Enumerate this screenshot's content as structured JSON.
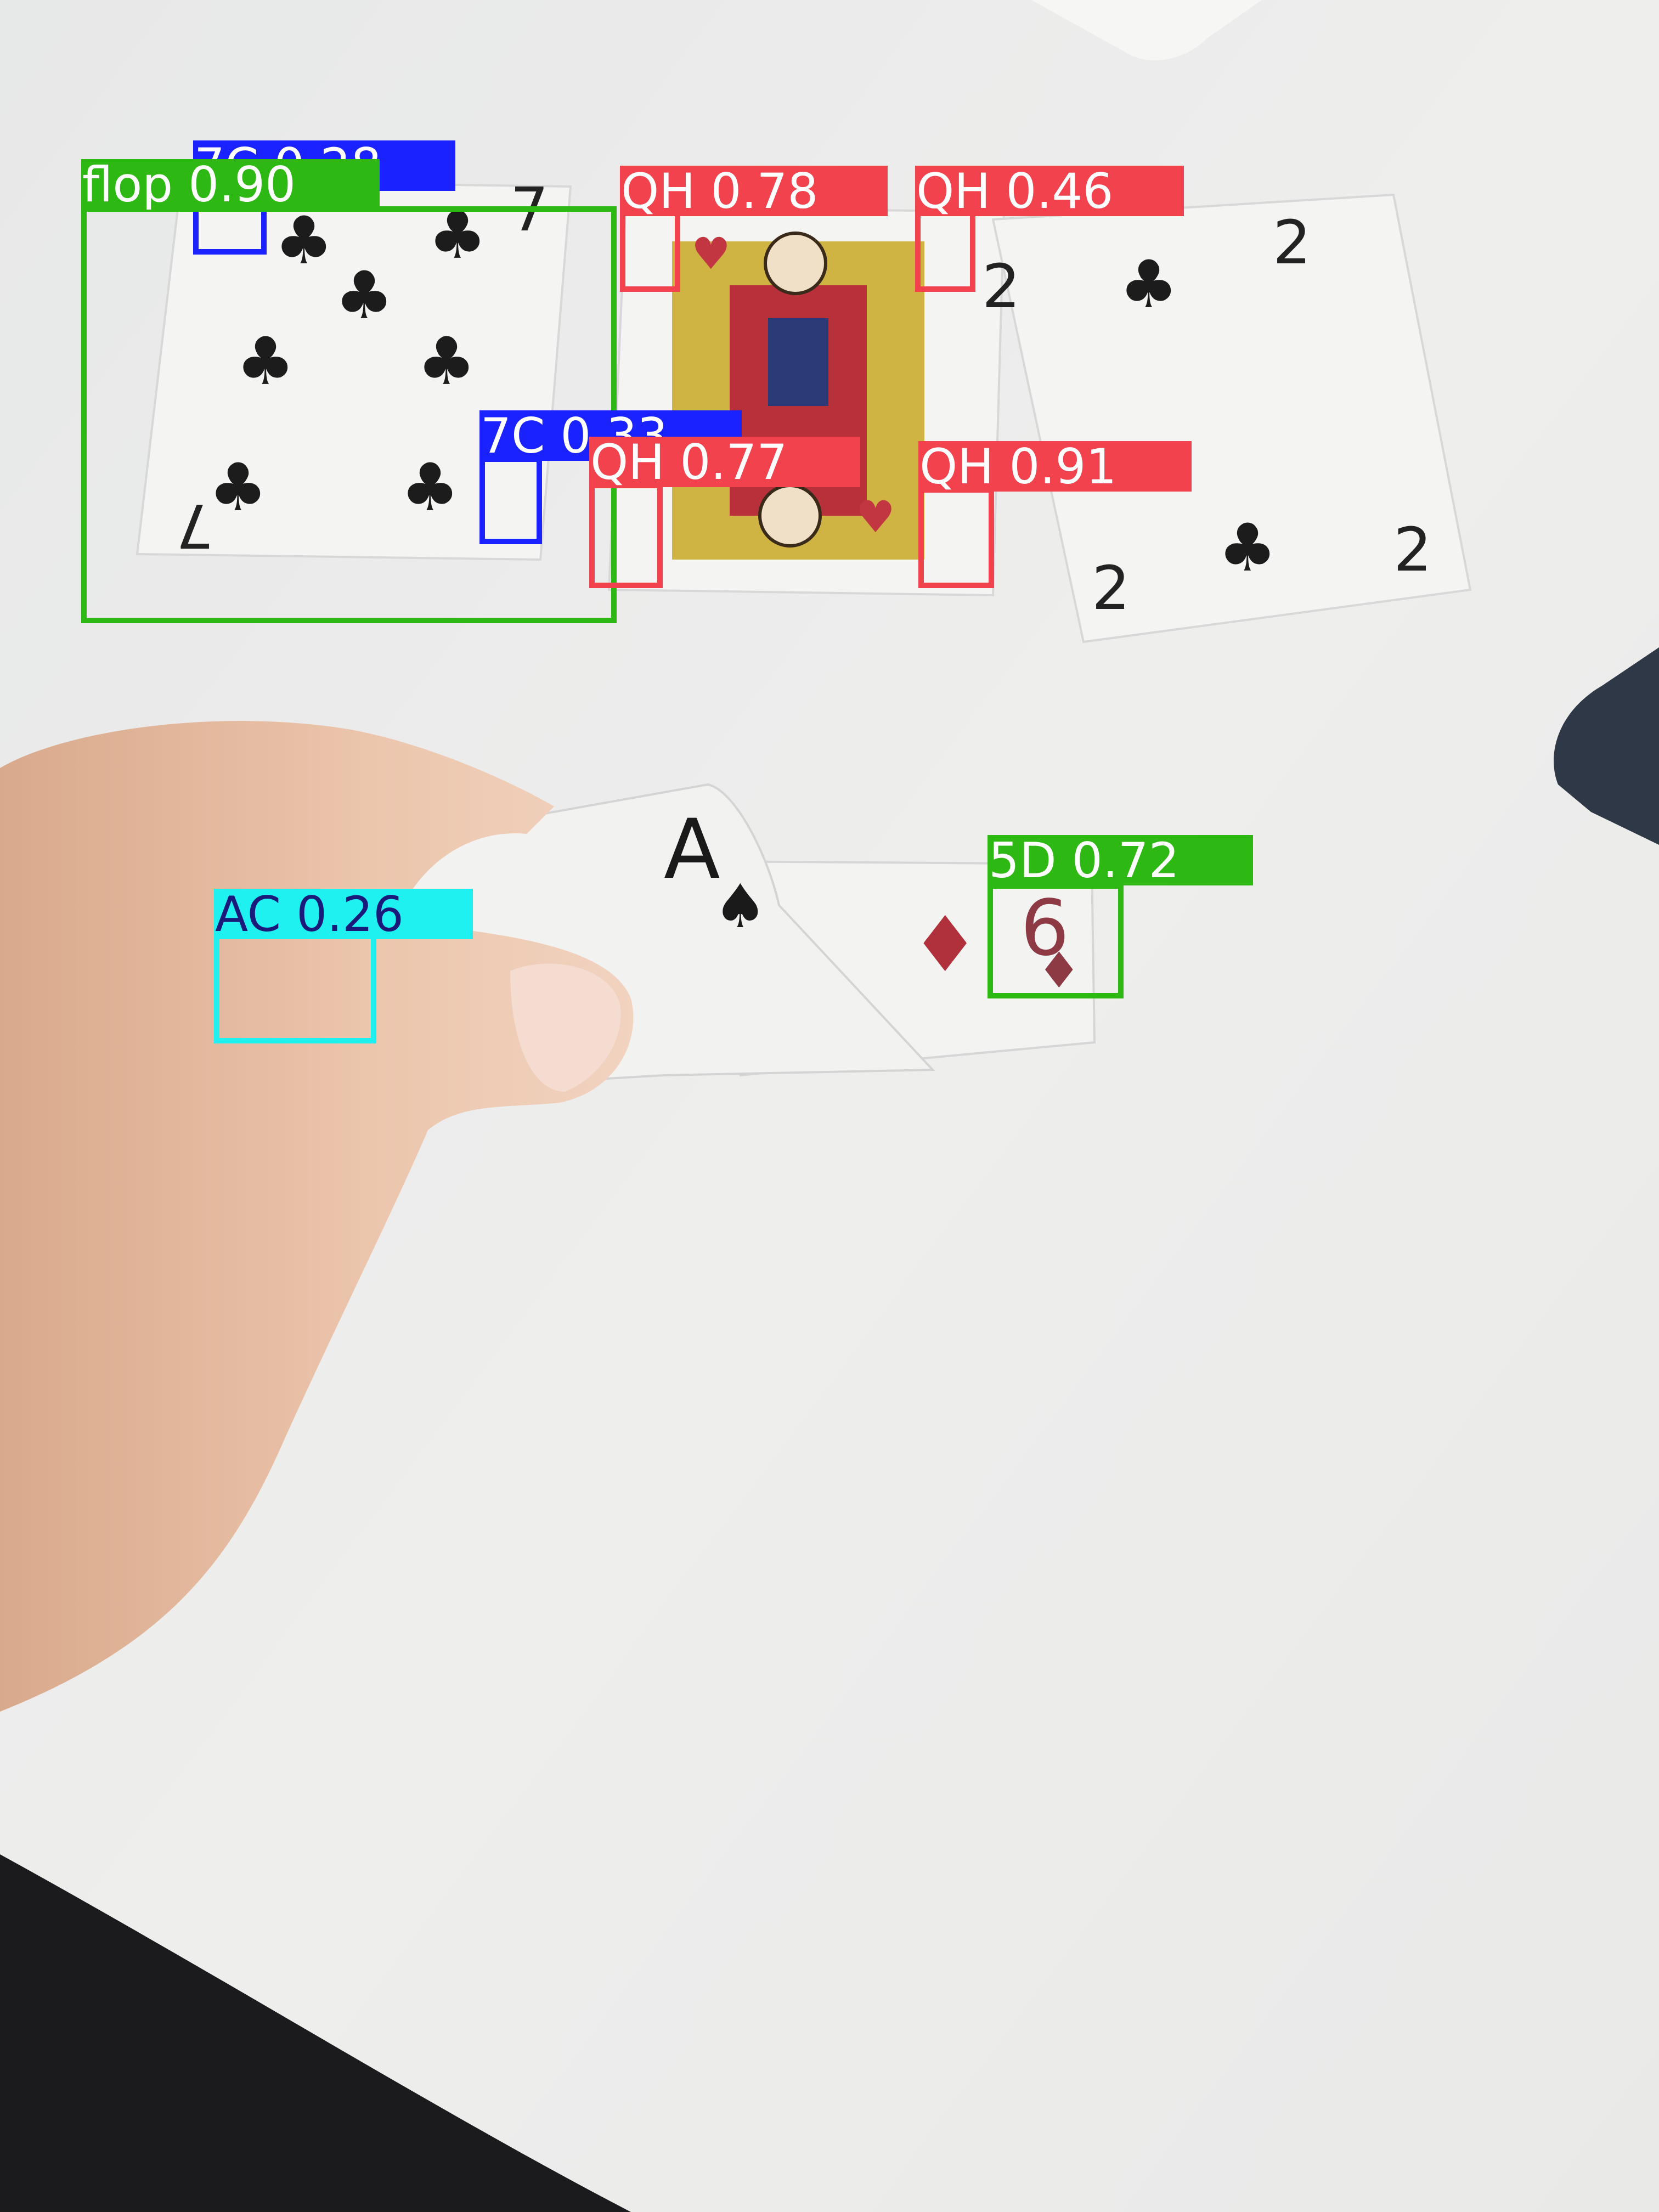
{
  "detections": [
    {
      "label": "7C 0.28",
      "color": "#1a22ff",
      "text_color": "#ffffff"
    },
    {
      "label": "flop 0.90",
      "color": "#2eb814",
      "text_color": "#ffffff"
    },
    {
      "label": "QH 0.78",
      "color": "#f2424e",
      "text_color": "#ffffff"
    },
    {
      "label": "QH 0.46",
      "color": "#f2424e",
      "text_color": "#ffffff"
    },
    {
      "label": "7C 0.33",
      "color": "#1a22ff",
      "text_color": "#ffffff"
    },
    {
      "label": "QH 0.77",
      "color": "#f2424e",
      "text_color": "#ffffff"
    },
    {
      "label": "QH 0.91",
      "color": "#f2424e",
      "text_color": "#ffffff"
    },
    {
      "label": "5D 0.72",
      "color": "#2eb814",
      "text_color": "#ffffff"
    },
    {
      "label": "AC 0.26",
      "color": "#1ff0f0",
      "text_color": "#1a1a7a"
    }
  ],
  "scene": {
    "table_color": "#ededec",
    "card_color": "#f4f4f2",
    "hand_color": "#e8c2a6"
  }
}
